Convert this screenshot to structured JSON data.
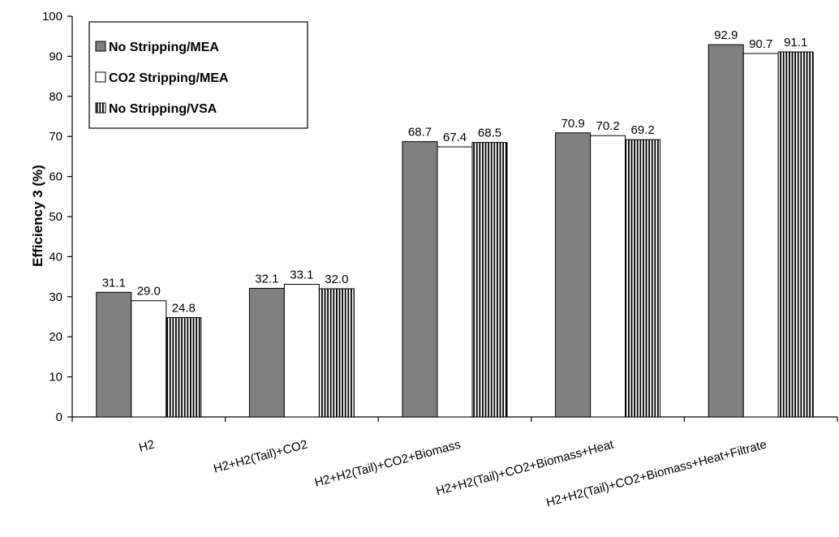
{
  "chart_data": {
    "type": "bar",
    "title": "",
    "xlabel": "",
    "ylabel": "Efficiency 3 (%)",
    "ylim": [
      0,
      100
    ],
    "ytick_step": 10,
    "grid": false,
    "legend_position": "top-left",
    "categories": [
      "H2",
      "H2+H2(Tail)+CO2",
      "H2+H2(Tail)+CO2+Biomass",
      "H2+H2(Tail)+CO2+Biomass+Heat",
      "H2+H2(Tail)+CO2+Biomass+Heat+Filtrate"
    ],
    "series": [
      {
        "name": "No Stripping/MEA",
        "fill": "solid",
        "color": "#808080",
        "values": [
          31.1,
          32.1,
          68.7,
          70.9,
          92.9
        ],
        "labels": [
          "31.1",
          "32.1",
          "68.7",
          "70.9",
          "92.9"
        ]
      },
      {
        "name": "CO2 Stripping/MEA",
        "fill": "solid",
        "color": "#ffffff",
        "values": [
          29.0,
          33.1,
          67.4,
          70.2,
          90.7
        ],
        "labels": [
          "29.0",
          "33.1",
          "67.4",
          "70.2",
          "90.7"
        ]
      },
      {
        "name": "No Stripping/VSA",
        "fill": "vertical-stripes",
        "color": "#000000",
        "values": [
          24.8,
          32.0,
          68.5,
          69.2,
          91.1
        ],
        "labels": [
          "24.8",
          "32.0",
          "68.5",
          "69.2",
          "91.1"
        ]
      }
    ]
  }
}
